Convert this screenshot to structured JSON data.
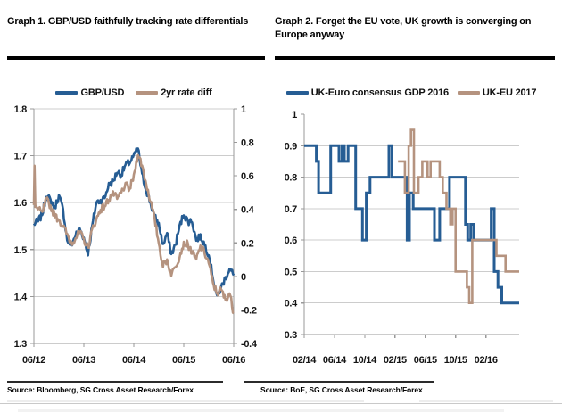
{
  "colors": {
    "series_blue": "#265d94",
    "series_tan": "#b5937f",
    "gridline": "#cccccc",
    "axis": "#999999",
    "text": "#141414"
  },
  "chart_data": [
    {
      "type": "line",
      "title": "Graph 1. GBP/USD faithfully tracking rate differentials",
      "source": "Source: Bloomberg, SG Cross Asset Research/Forex",
      "x_tick_labels": [
        "06/12",
        "06/13",
        "06/14",
        "06/15",
        "06/16"
      ],
      "x_tick_months": [
        0,
        12,
        24,
        36,
        48
      ],
      "x_range_months": [
        0,
        48
      ],
      "grid": true,
      "legend_position": "top",
      "left_axis": {
        "min": 1.3,
        "max": 1.8,
        "ticks": [
          "1.8",
          "1.7",
          "1.6",
          "1.5",
          "1.4",
          "1.3"
        ]
      },
      "right_axis": {
        "min": -0.4,
        "max": 1,
        "ticks": [
          "1",
          "0.8",
          "0.6",
          "0.4",
          "0.2",
          "0",
          "-0.2",
          "-0.4"
        ]
      },
      "series": [
        {
          "name": "GBP/USD",
          "axis": "left",
          "color": "#265d94",
          "width": 2.6,
          "jitter": 0.008,
          "points": [
            [
              0,
              1.555
            ],
            [
              1,
              1.56
            ],
            [
              2,
              1.575
            ],
            [
              3,
              1.615
            ],
            [
              4,
              1.605
            ],
            [
              5,
              1.59
            ],
            [
              6,
              1.615
            ],
            [
              7,
              1.585
            ],
            [
              8,
              1.52
            ],
            [
              9,
              1.51
            ],
            [
              10,
              1.53
            ],
            [
              11,
              1.545
            ],
            [
              12,
              1.525
            ],
            [
              13,
              1.49
            ],
            [
              14,
              1.55
            ],
            [
              15,
              1.6
            ],
            [
              16,
              1.605
            ],
            [
              17,
              1.61
            ],
            [
              18,
              1.64
            ],
            [
              19,
              1.645
            ],
            [
              20,
              1.665
            ],
            [
              21,
              1.66
            ],
            [
              22,
              1.68
            ],
            [
              23,
              1.685
            ],
            [
              24,
              1.7
            ],
            [
              25,
              1.715
            ],
            [
              26,
              1.66
            ],
            [
              27,
              1.625
            ],
            [
              28,
              1.6
            ],
            [
              29,
              1.57
            ],
            [
              30,
              1.555
            ],
            [
              31,
              1.51
            ],
            [
              32,
              1.535
            ],
            [
              33,
              1.49
            ],
            [
              34,
              1.51
            ],
            [
              35,
              1.55
            ],
            [
              36,
              1.575
            ],
            [
              37,
              1.56
            ],
            [
              38,
              1.56
            ],
            [
              39,
              1.52
            ],
            [
              40,
              1.53
            ],
            [
              41,
              1.51
            ],
            [
              42,
              1.49
            ],
            [
              43,
              1.44
            ],
            [
              44,
              1.4
            ],
            [
              45,
              1.42
            ],
            [
              46,
              1.44
            ],
            [
              47,
              1.46
            ],
            [
              48,
              1.445
            ]
          ]
        },
        {
          "name": "2yr rate diff",
          "axis": "right",
          "color": "#b5937f",
          "width": 2.6,
          "jitter": 0.022,
          "points": [
            [
              0,
              0.42
            ],
            [
              0.15,
              0.66
            ],
            [
              0.35,
              0.42
            ],
            [
              1,
              0.4
            ],
            [
              2,
              0.38
            ],
            [
              3,
              0.46
            ],
            [
              4,
              0.42
            ],
            [
              5,
              0.36
            ],
            [
              6,
              0.34
            ],
            [
              7,
              0.3
            ],
            [
              8,
              0.25
            ],
            [
              9,
              0.2
            ],
            [
              10,
              0.23
            ],
            [
              11,
              0.26
            ],
            [
              12,
              0.22
            ],
            [
              13,
              0.17
            ],
            [
              14,
              0.28
            ],
            [
              15,
              0.34
            ],
            [
              16,
              0.4
            ],
            [
              17,
              0.42
            ],
            [
              18,
              0.46
            ],
            [
              19,
              0.5
            ],
            [
              20,
              0.46
            ],
            [
              21,
              0.5
            ],
            [
              22,
              0.55
            ],
            [
              23,
              0.52
            ],
            [
              24,
              0.6
            ],
            [
              25,
              0.73
            ],
            [
              26,
              0.66
            ],
            [
              27,
              0.55
            ],
            [
              28,
              0.45
            ],
            [
              29,
              0.34
            ],
            [
              30,
              0.2
            ],
            [
              31,
              0.06
            ],
            [
              32,
              0.1
            ],
            [
              33,
              0.01
            ],
            [
              34,
              0.06
            ],
            [
              35,
              0.12
            ],
            [
              36,
              0.2
            ],
            [
              37,
              0.19
            ],
            [
              38,
              0.14
            ],
            [
              39,
              0.1
            ],
            [
              40,
              0.18
            ],
            [
              41,
              0.14
            ],
            [
              42,
              0.08
            ],
            [
              43,
              -0.04
            ],
            [
              44,
              -0.1
            ],
            [
              45,
              -0.08
            ],
            [
              46,
              -0.14
            ],
            [
              47,
              -0.1
            ],
            [
              48,
              -0.22
            ]
          ]
        }
      ]
    },
    {
      "type": "line",
      "subtype": "step",
      "title": "Graph 2. Forget the EU vote, UK growth is converging on Europe anyway",
      "source": "Source: BoE, SG Cross Asset Research/Forex",
      "x_tick_labels": [
        "02/14",
        "06/14",
        "10/14",
        "02/15",
        "06/15",
        "10/15",
        "02/16"
      ],
      "x_tick_months": [
        0,
        4,
        8,
        12,
        16,
        20,
        24
      ],
      "x_range_months": [
        0,
        28.4
      ],
      "grid": true,
      "legend_position": "top",
      "left_axis": {
        "min": 0.3,
        "max": 1,
        "ticks": [
          "1",
          "0.9",
          "0.8",
          "0.7",
          "0.6",
          "0.5",
          "0.4",
          "0.3"
        ]
      },
      "series": [
        {
          "name": "UK-Euro consensus GDP 2016",
          "axis": "left",
          "color": "#265d94",
          "width": 3,
          "steps": [
            [
              0,
              0.9
            ],
            [
              1.6,
              0.85
            ],
            [
              1.9,
              0.75
            ],
            [
              3.5,
              0.9
            ],
            [
              4.6,
              0.85
            ],
            [
              5,
              0.9
            ],
            [
              5.3,
              0.85
            ],
            [
              5.8,
              0.9
            ],
            [
              6.8,
              0.7
            ],
            [
              7.7,
              0.6
            ],
            [
              8.2,
              0.75
            ],
            [
              8.7,
              0.8
            ],
            [
              11.2,
              0.9
            ],
            [
              11.6,
              0.8
            ],
            [
              13.6,
              0.6
            ],
            [
              13.9,
              0.75
            ],
            [
              14.4,
              0.7
            ],
            [
              17.2,
              0.6
            ],
            [
              17.9,
              0.7
            ],
            [
              19.2,
              0.8
            ],
            [
              21.3,
              0.65
            ],
            [
              21.6,
              0.6
            ],
            [
              22,
              0.65
            ],
            [
              22.4,
              0.6
            ],
            [
              24.7,
              0.7
            ],
            [
              25.1,
              0.5
            ],
            [
              25.6,
              0.45
            ],
            [
              26.1,
              0.4
            ],
            [
              28.4,
              0.4
            ]
          ]
        },
        {
          "name": "UK-EU 2017",
          "axis": "left",
          "color": "#b5937f",
          "width": 2.6,
          "steps": [
            [
              12.4,
              0.85
            ],
            [
              13.3,
              0.75
            ],
            [
              13.8,
              0.9
            ],
            [
              14.1,
              0.95
            ],
            [
              14.5,
              0.75
            ],
            [
              15.1,
              0.8
            ],
            [
              15.6,
              0.85
            ],
            [
              16.3,
              0.8
            ],
            [
              16.7,
              0.85
            ],
            [
              17.9,
              0.8
            ],
            [
              18.3,
              0.75
            ],
            [
              18.8,
              0.7
            ],
            [
              19.3,
              0.65
            ],
            [
              19.6,
              0.7
            ],
            [
              20,
              0.5
            ],
            [
              21.5,
              0.45
            ],
            [
              21.8,
              0.4
            ],
            [
              22.2,
              0.6
            ],
            [
              25.4,
              0.55
            ],
            [
              26.6,
              0.5
            ],
            [
              28.4,
              0.5
            ]
          ]
        }
      ]
    }
  ]
}
